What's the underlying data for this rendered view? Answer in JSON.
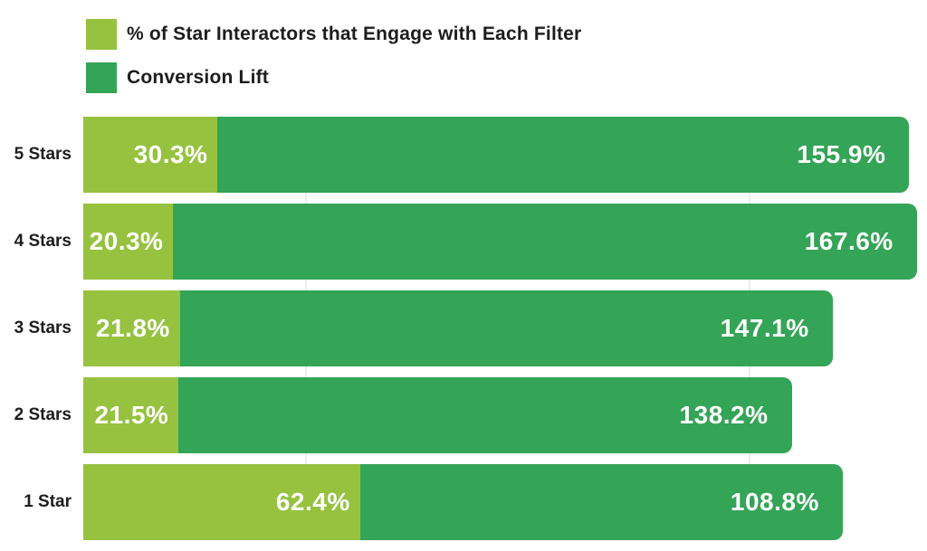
{
  "chart_data": {
    "type": "bar",
    "orientation": "horizontal-stacked",
    "title": "",
    "categories": [
      "5 Stars",
      "4 Stars",
      "3 Stars",
      "2 Stars",
      "1 Star"
    ],
    "series": [
      {
        "name": "% of Star Interactors that Engage with Each Filter",
        "color": "#96C23F",
        "values": [
          30.3,
          20.3,
          21.8,
          21.5,
          62.4
        ],
        "labels": [
          "30.3%",
          "20.3%",
          "21.8%",
          "21.5%",
          "62.4%"
        ]
      },
      {
        "name": "Conversion Lift",
        "color": "#34A457",
        "values": [
          155.9,
          167.6,
          147.1,
          138.2,
          108.8
        ],
        "labels": [
          "155.9%",
          "167.6%",
          "147.1%",
          "138.2%",
          "108.8%"
        ]
      }
    ],
    "xlim": [
      0,
      190
    ],
    "grid_ticks": [
      50,
      150
    ],
    "grid_on": true,
    "legend_position": "top-left",
    "value_label_color": "#FFFFFF",
    "category_label_color": "#1D1D1D",
    "gridline_color": "#ECECEC",
    "background": "#FFFFFF"
  }
}
